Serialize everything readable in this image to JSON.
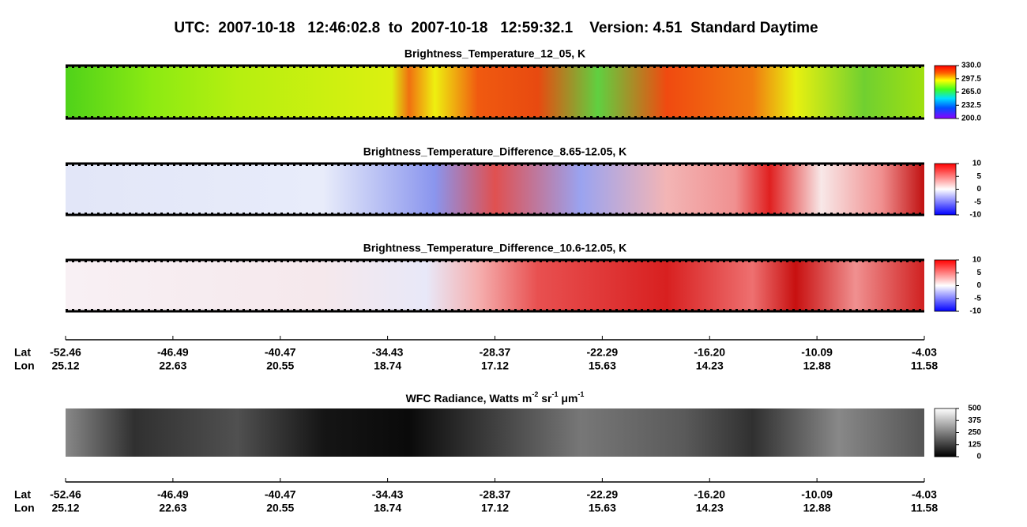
{
  "chart_data": {
    "type": "swath",
    "title": "UTC:  2007-10-18   12:46:02.8  to  2007-10-18   12:59:32.1    Version: 4.51  Standard Daytime",
    "panels": [
      {
        "title": "Brightness_Temperature_12_05, K",
        "clim": [
          200,
          330
        ],
        "colorbar_ticks": [
          {
            "value": 330,
            "label": "330.0"
          },
          297.5,
          {
            "value": 265,
            "label": "265.0"
          },
          232.5,
          {
            "value": 200,
            "label": "200.0"
          }
        ]
      },
      {
        "title": "Brightness_Temperature_Difference_8.65-12.05, K",
        "clim": [
          -10,
          10
        ],
        "colorbar_ticks": [
          10,
          5,
          0,
          -5,
          -10
        ]
      },
      {
        "title": "Brightness_Temperature_Difference_10.6-12.05, K",
        "clim": [
          -10,
          10
        ],
        "colorbar_ticks": [
          10,
          5,
          0,
          -5,
          -10
        ]
      },
      {
        "title_parts": [
          "WFC Radiance, Watts m",
          "-2",
          " sr",
          "-1",
          " μm",
          "-1"
        ],
        "clim": [
          0,
          500
        ],
        "colorbar_ticks": [
          500,
          375,
          250,
          125,
          0
        ]
      }
    ],
    "axes": [
      {
        "lat_label": "Lat",
        "lon_label": "Lon",
        "lat": [
          -52.46,
          -46.49,
          -40.47,
          -34.43,
          -28.37,
          -22.29,
          {
            "value": -16.2,
            "label": "-16.20"
          },
          -10.09,
          -4.03
        ],
        "lon": [
          25.12,
          22.63,
          20.55,
          18.74,
          17.12,
          15.63,
          14.23,
          12.88,
          11.58
        ]
      },
      {
        "lat_label": "Lat",
        "lon_label": "Lon",
        "lat": [
          -52.46,
          -46.49,
          -40.47,
          -34.43,
          -28.37,
          -22.29,
          {
            "value": -16.2,
            "label": "-16.20"
          },
          -10.09,
          -4.03
        ],
        "lon": [
          25.12,
          22.63,
          20.55,
          18.74,
          17.12,
          15.63,
          14.23,
          12.88,
          11.58
        ]
      }
    ]
  }
}
